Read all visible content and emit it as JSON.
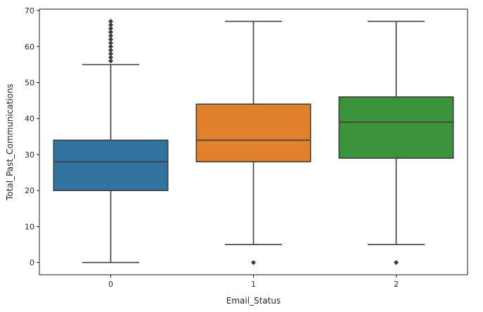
{
  "chart_data": {
    "type": "box",
    "xlabel": "Email_Status",
    "ylabel": "Total_Past_Communications",
    "ylim": [
      -3.4,
      70.4
    ],
    "yticks": [
      0,
      10,
      20,
      30,
      40,
      50,
      60,
      70
    ],
    "categories": [
      "0",
      "1",
      "2"
    ],
    "boxes": [
      {
        "category": "0",
        "color": "#3274a1",
        "q1": 20,
        "median": 28,
        "q3": 34,
        "whisker_low": 0,
        "whisker_high": 55,
        "outliers": [
          56,
          57,
          58,
          59,
          60,
          61,
          62,
          63,
          64,
          65,
          66,
          67
        ]
      },
      {
        "category": "1",
        "color": "#e1812c",
        "q1": 28,
        "median": 34,
        "q3": 44,
        "whisker_low": 5,
        "whisker_high": 67,
        "outliers": [
          0
        ]
      },
      {
        "category": "2",
        "color": "#3a923a",
        "q1": 29,
        "median": 39,
        "q3": 46,
        "whisker_low": 5,
        "whisker_high": 67,
        "outliers": [
          0
        ]
      }
    ],
    "grid": false,
    "legend": "none"
  }
}
